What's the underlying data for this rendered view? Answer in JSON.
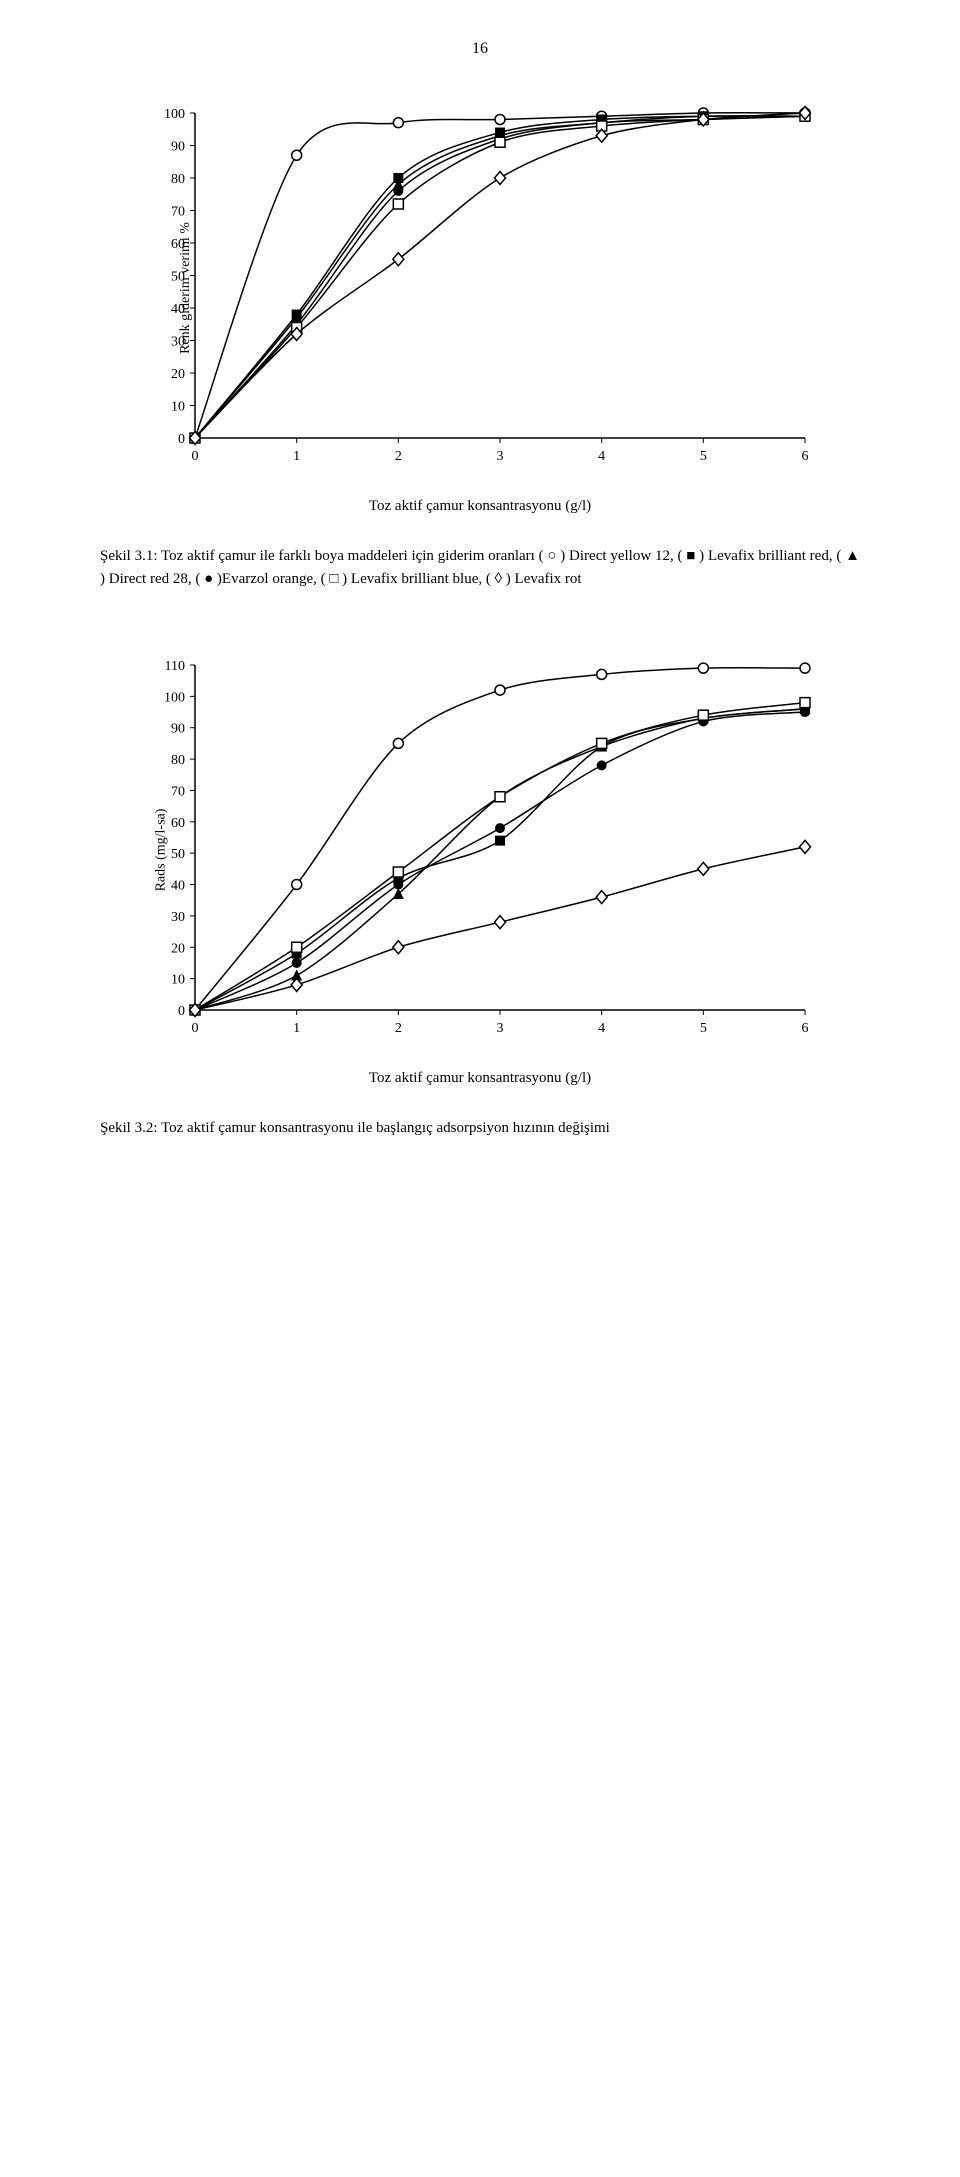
{
  "page_number": "16",
  "chart1": {
    "y_label": "Renk giderim verimi %",
    "x_label": "Toz aktif çamur konsantrasyonu (g/l)",
    "ytick_values": [
      0,
      10,
      20,
      30,
      40,
      50,
      60,
      70,
      80,
      90,
      100
    ],
    "xtick_values": [
      0,
      1,
      2,
      3,
      4,
      5,
      6
    ],
    "ylim": [
      0,
      100
    ],
    "xlim": [
      0,
      6
    ],
    "series": {
      "direct_yellow_12": {
        "marker": "open-circle",
        "data": [
          [
            0,
            0
          ],
          [
            1,
            87
          ],
          [
            2,
            97
          ],
          [
            3,
            98
          ],
          [
            4,
            99
          ],
          [
            5,
            100
          ],
          [
            6,
            100
          ]
        ]
      },
      "levafix_brilliant_red": {
        "marker": "filled-square",
        "data": [
          [
            0,
            0
          ],
          [
            1,
            38
          ],
          [
            2,
            80
          ],
          [
            3,
            94
          ],
          [
            4,
            98
          ],
          [
            5,
            99
          ],
          [
            6,
            99
          ]
        ]
      },
      "direct_red_28": {
        "marker": "filled-triangle",
        "data": [
          [
            0,
            0
          ],
          [
            1,
            37
          ],
          [
            2,
            78
          ],
          [
            3,
            93
          ],
          [
            4,
            97
          ],
          [
            5,
            99
          ],
          [
            6,
            99
          ]
        ]
      },
      "evarzol_orange": {
        "marker": "filled-circle",
        "data": [
          [
            0,
            0
          ],
          [
            1,
            35
          ],
          [
            2,
            76
          ],
          [
            3,
            92
          ],
          [
            4,
            97
          ],
          [
            5,
            98
          ],
          [
            6,
            99
          ]
        ]
      },
      "levafix_brilliant_blue": {
        "marker": "open-square",
        "data": [
          [
            0,
            0
          ],
          [
            1,
            34
          ],
          [
            2,
            72
          ],
          [
            3,
            91
          ],
          [
            4,
            96
          ],
          [
            5,
            98
          ],
          [
            6,
            99
          ]
        ]
      },
      "levafix_rot": {
        "marker": "open-diamond",
        "data": [
          [
            0,
            0
          ],
          [
            1,
            32
          ],
          [
            2,
            55
          ],
          [
            3,
            80
          ],
          [
            4,
            93
          ],
          [
            5,
            98
          ],
          [
            6,
            100
          ]
        ]
      }
    },
    "line_color": "#000000",
    "bg_color": "#ffffff"
  },
  "caption1": "Şekil 3.1: Toz aktif çamur ile farklı boya maddeleri için giderim oranları ( ○ ) Direct yellow 12, ( ■ ) Levafix brilliant red, ( ▲ ) Direct red 28, ( ● )Evarzol orange, ( □ ) Levafix brilliant blue, ( ◊ ) Levafix rot",
  "chart2": {
    "y_label": "Rads (mg/l-sa)",
    "x_label": "Toz aktif çamur konsantrasyonu (g/l)",
    "ytick_values": [
      0,
      10,
      20,
      30,
      40,
      50,
      60,
      70,
      80,
      90,
      100,
      110
    ],
    "xtick_values": [
      0,
      1,
      2,
      3,
      4,
      5,
      6
    ],
    "ylim": [
      0,
      110
    ],
    "xlim": [
      0,
      6
    ],
    "series": {
      "direct_yellow_12": {
        "marker": "open-circle",
        "data": [
          [
            0,
            0
          ],
          [
            1,
            40
          ],
          [
            2,
            85
          ],
          [
            3,
            102
          ],
          [
            4,
            107
          ],
          [
            5,
            109
          ],
          [
            6,
            109
          ]
        ]
      },
      "levafix_brilliant_red": {
        "marker": "filled-square",
        "data": [
          [
            0,
            0
          ],
          [
            1,
            18
          ],
          [
            2,
            42
          ],
          [
            3,
            54
          ],
          [
            4,
            84
          ],
          [
            5,
            93
          ],
          [
            6,
            96
          ]
        ]
      },
      "direct_red_28": {
        "marker": "filled-triangle",
        "data": [
          [
            0,
            0
          ],
          [
            1,
            11
          ],
          [
            2,
            37
          ],
          [
            3,
            68
          ],
          [
            4,
            84
          ],
          [
            5,
            93
          ],
          [
            6,
            96
          ]
        ]
      },
      "evarzol_orange": {
        "marker": "filled-circle",
        "data": [
          [
            0,
            0
          ],
          [
            1,
            15
          ],
          [
            2,
            40
          ],
          [
            3,
            58
          ],
          [
            4,
            78
          ],
          [
            5,
            92
          ],
          [
            6,
            95
          ]
        ]
      },
      "levafix_brilliant_blue": {
        "marker": "open-square",
        "data": [
          [
            0,
            0
          ],
          [
            1,
            20
          ],
          [
            2,
            44
          ],
          [
            3,
            68
          ],
          [
            4,
            85
          ],
          [
            5,
            94
          ],
          [
            6,
            98
          ]
        ]
      },
      "levafix_rot": {
        "marker": "open-diamond",
        "data": [
          [
            0,
            0
          ],
          [
            1,
            8
          ],
          [
            2,
            20
          ],
          [
            3,
            28
          ],
          [
            4,
            36
          ],
          [
            5,
            45
          ],
          [
            6,
            52
          ]
        ]
      }
    },
    "line_color": "#000000",
    "bg_color": "#ffffff"
  },
  "caption2": "Şekil 3.2: Toz aktif çamur konsantrasyonu ile başlangıç adsorpsiyon hızının değişimi"
}
